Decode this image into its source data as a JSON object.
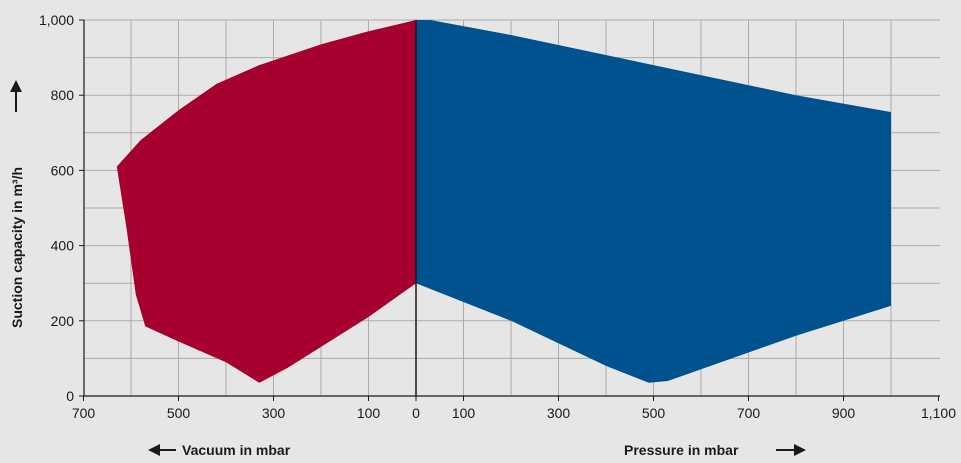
{
  "chart_data": {
    "type": "area",
    "ylabel": "Suction capacity in m³/h",
    "ylim": [
      0,
      1000
    ],
    "yticks": [
      0,
      200,
      400,
      600,
      800,
      1000
    ],
    "ytick_labels": [
      "0",
      "200",
      "400",
      "600",
      "800",
      "1,000"
    ],
    "x_ticks_vacuum": [
      700,
      500,
      300,
      100,
      0
    ],
    "x_ticks_vacuum_labels": [
      "700",
      "500",
      "300",
      "100",
      "0"
    ],
    "x_ticks_pressure": [
      100,
      300,
      500,
      700,
      900,
      1100
    ],
    "x_ticks_pressure_labels": [
      "100",
      "300",
      "500",
      "700",
      "900",
      "1,100"
    ],
    "vacuum_range": [
      700,
      0
    ],
    "pressure_range": [
      0,
      1100
    ],
    "grid": true,
    "series": [
      {
        "side": "vacuum",
        "axis_label": "Vacuum in mbar",
        "color": "#a6002e",
        "upper": [
          [
            630,
            610
          ],
          [
            580,
            680
          ],
          [
            500,
            760
          ],
          [
            420,
            830
          ],
          [
            330,
            880
          ],
          [
            200,
            935
          ],
          [
            100,
            970
          ],
          [
            0,
            1000
          ]
        ],
        "lower": [
          [
            630,
            610
          ],
          [
            610,
            450
          ],
          [
            590,
            270
          ],
          [
            570,
            185
          ],
          [
            500,
            145
          ],
          [
            400,
            90
          ],
          [
            330,
            35
          ],
          [
            270,
            75
          ],
          [
            100,
            210
          ],
          [
            0,
            300
          ]
        ]
      },
      {
        "side": "pressure",
        "axis_label": "Pressure in mbar",
        "color": "#00528e",
        "upper": [
          [
            0,
            1000
          ],
          [
            30,
            1000
          ],
          [
            200,
            960
          ],
          [
            500,
            880
          ],
          [
            800,
            800
          ],
          [
            1000,
            755
          ]
        ],
        "lower": [
          [
            0,
            300
          ],
          [
            200,
            200
          ],
          [
            400,
            80
          ],
          [
            490,
            35
          ],
          [
            530,
            40
          ],
          [
            800,
            160
          ],
          [
            1000,
            240
          ]
        ]
      }
    ]
  }
}
